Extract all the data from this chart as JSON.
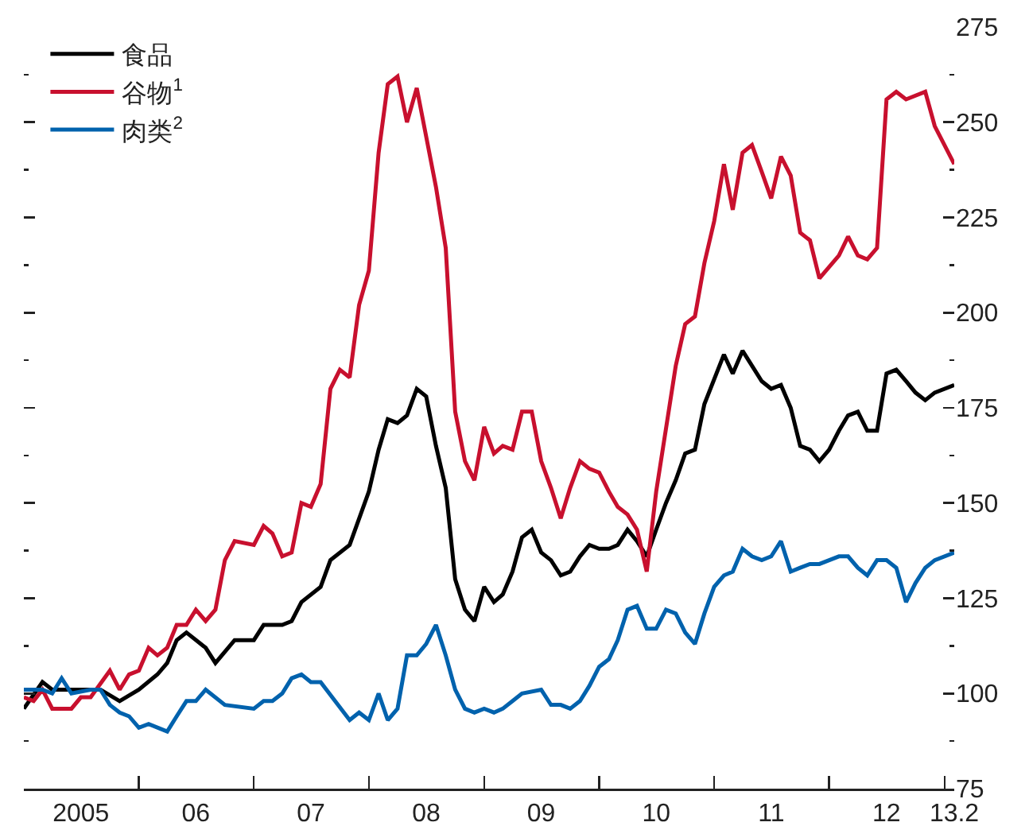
{
  "chart_data": {
    "type": "line",
    "xlim": [
      "2005-01",
      "2013-02"
    ],
    "xticks": [
      {
        "value": "2005-07",
        "label": "2005"
      },
      {
        "value": "2006-07",
        "label": "06"
      },
      {
        "value": "2007-07",
        "label": "07"
      },
      {
        "value": "2008-07",
        "label": "08"
      },
      {
        "value": "2009-07",
        "label": "09"
      },
      {
        "value": "2010-07",
        "label": "10"
      },
      {
        "value": "2011-07",
        "label": "11"
      },
      {
        "value": "2012-07",
        "label": "12"
      },
      {
        "value": "2013-02",
        "label": "13.2"
      },
      {
        "value": "2006-01",
        "label": null
      },
      {
        "value": "2007-01",
        "label": null
      },
      {
        "value": "2008-01",
        "label": null
      },
      {
        "value": "2009-01",
        "label": null
      },
      {
        "value": "2010-01",
        "label": null
      },
      {
        "value": "2011-01",
        "label": null
      },
      {
        "value": "2012-01",
        "label": null
      },
      {
        "value": "2013-01",
        "label": null
      }
    ],
    "ylim": [
      75,
      275
    ],
    "yticks": [
      75,
      100,
      125,
      150,
      175,
      200,
      225,
      250,
      275,
      {
        "value": 87.5,
        "label": null
      },
      {
        "value": 112.5,
        "label": null
      },
      {
        "value": 137.5,
        "label": null
      },
      {
        "value": 162.5,
        "label": null
      },
      {
        "value": 187.5,
        "label": null
      },
      {
        "value": 212.5,
        "label": null
      },
      {
        "value": 237.5,
        "label": null
      },
      {
        "value": 262.5,
        "label": null
      }
    ],
    "legend": "top left",
    "series": [
      {
        "name": "食品",
        "color": "#000000",
        "x": [
          "2005-01",
          "2005-03",
          "2005-04",
          "2005-07",
          "2005-09",
          "2005-11",
          "2006-01",
          "2006-03",
          "2006-04",
          "2006-05",
          "2006-06",
          "2006-08",
          "2006-09",
          "2006-11",
          "2007-01",
          "2007-02",
          "2007-04",
          "2007-05",
          "2007-06",
          "2007-08",
          "2007-09",
          "2007-11",
          "2008-01",
          "2008-02",
          "2008-03",
          "2008-04",
          "2008-05",
          "2008-06",
          "2008-07",
          "2008-08",
          "2008-09",
          "2008-10",
          "2008-11",
          "2008-12",
          "2009-01",
          "2009-02",
          "2009-03",
          "2009-04",
          "2009-05",
          "2009-06",
          "2009-07",
          "2009-08",
          "2009-09",
          "2009-10",
          "2009-11",
          "2009-12",
          "2010-01",
          "2010-02",
          "2010-03",
          "2010-04",
          "2010-05",
          "2010-06",
          "2010-07",
          "2010-08",
          "2010-09",
          "2010-10",
          "2010-11",
          "2010-12",
          "2011-02",
          "2011-03",
          "2011-04",
          "2011-06",
          "2011-07",
          "2011-08",
          "2011-09",
          "2011-10",
          "2011-11",
          "2011-12",
          "2012-01",
          "2012-02",
          "2012-03",
          "2012-04",
          "2012-05",
          "2012-06",
          "2012-07",
          "2012-08",
          "2012-09",
          "2012-10",
          "2012-11",
          "2012-12",
          "2013-02"
        ],
        "values": [
          96,
          103,
          101,
          101,
          101,
          98,
          101,
          105,
          108,
          114,
          116,
          112,
          108,
          114,
          114,
          118,
          118,
          119,
          124,
          128,
          135,
          139,
          153,
          164,
          172,
          171,
          173,
          180,
          178,
          165,
          154,
          130,
          122,
          119,
          128,
          124,
          126,
          132,
          141,
          143,
          137,
          135,
          131,
          132,
          136,
          139,
          138,
          138,
          139,
          143,
          140,
          136,
          143,
          150,
          156,
          163,
          164,
          176,
          189,
          184,
          190,
          182,
          180,
          181,
          175,
          165,
          164,
          161,
          164,
          169,
          173,
          174,
          169,
          169,
          184,
          185,
          182,
          179,
          177,
          179,
          181
        ]
      },
      {
        "name": "谷物$^{1}$",
        "color": "#c8102e",
        "x": [
          "2005-01",
          "2005-02",
          "2005-03",
          "2005-04",
          "2005-06",
          "2005-07",
          "2005-08",
          "2005-10",
          "2005-11",
          "2005-12",
          "2006-01",
          "2006-02",
          "2006-03",
          "2006-04",
          "2006-05",
          "2006-06",
          "2006-07",
          "2006-08",
          "2006-09",
          "2006-10",
          "2006-11",
          "2007-01",
          "2007-02",
          "2007-03",
          "2007-04",
          "2007-05",
          "2007-06",
          "2007-07",
          "2007-08",
          "2007-09",
          "2007-10",
          "2007-11",
          "2007-12",
          "2008-01",
          "2008-02",
          "2008-03",
          "2008-04",
          "2008-05",
          "2008-06",
          "2008-08",
          "2008-09",
          "2008-10",
          "2008-11",
          "2008-12",
          "2009-01",
          "2009-02",
          "2009-03",
          "2009-04",
          "2009-05",
          "2009-06",
          "2009-07",
          "2009-08",
          "2009-09",
          "2009-10",
          "2009-11",
          "2009-12",
          "2010-01",
          "2010-02",
          "2010-03",
          "2010-04",
          "2010-05",
          "2010-06",
          "2010-07",
          "2010-09",
          "2010-10",
          "2010-11",
          "2010-12",
          "2011-01",
          "2011-02",
          "2011-03",
          "2011-04",
          "2011-05",
          "2011-06",
          "2011-07",
          "2011-08",
          "2011-09",
          "2011-10",
          "2011-11",
          "2011-12",
          "2012-02",
          "2012-03",
          "2012-04",
          "2012-05",
          "2012-06",
          "2012-07",
          "2012-08",
          "2012-09",
          "2012-11",
          "2012-12",
          "2013-02"
        ],
        "values": [
          99,
          98,
          101,
          96,
          96,
          99,
          99,
          106,
          101,
          105,
          106,
          112,
          110,
          112,
          118,
          118,
          122,
          119,
          122,
          135,
          140,
          139,
          144,
          142,
          136,
          137,
          150,
          149,
          155,
          180,
          185,
          183,
          202,
          211,
          242,
          260,
          262,
          250,
          259,
          233,
          217,
          174,
          161,
          156,
          170,
          163,
          165,
          164,
          174,
          174,
          161,
          154,
          146,
          154,
          161,
          159,
          158,
          153,
          149,
          147,
          143,
          132,
          153,
          186,
          197,
          199,
          213,
          224,
          239,
          227,
          242,
          244,
          237,
          230,
          241,
          236,
          221,
          219,
          209,
          215,
          220,
          215,
          214,
          217,
          256,
          258,
          256,
          258,
          249,
          239
        ]
      },
      {
        "name": "肉类$^{2}$",
        "color": "#0062ad",
        "x": [
          "2005-01",
          "2005-02",
          "2005-03",
          "2005-04",
          "2005-05",
          "2005-06",
          "2005-08",
          "2005-09",
          "2005-10",
          "2005-11",
          "2005-12",
          "2006-01",
          "2006-02",
          "2006-04",
          "2006-05",
          "2006-06",
          "2006-07",
          "2006-08",
          "2006-10",
          "2007-01",
          "2007-02",
          "2007-03",
          "2007-04",
          "2007-05",
          "2007-06",
          "2007-07",
          "2007-08",
          "2007-11",
          "2007-12",
          "2008-01",
          "2008-02",
          "2008-03",
          "2008-04",
          "2008-05",
          "2008-06",
          "2008-07",
          "2008-08",
          "2008-09",
          "2008-10",
          "2008-11",
          "2008-12",
          "2009-01",
          "2009-02",
          "2009-03",
          "2009-04",
          "2009-05",
          "2009-07",
          "2009-08",
          "2009-09",
          "2009-10",
          "2009-11",
          "2009-12",
          "2010-01",
          "2010-02",
          "2010-03",
          "2010-04",
          "2010-05",
          "2010-06",
          "2010-07",
          "2010-08",
          "2010-09",
          "2010-10",
          "2010-11",
          "2010-12",
          "2011-01",
          "2011-02",
          "2011-03",
          "2011-04",
          "2011-05",
          "2011-06",
          "2011-07",
          "2011-08",
          "2011-09",
          "2011-10",
          "2011-11",
          "2011-12",
          "2012-01",
          "2012-02",
          "2012-03",
          "2012-04",
          "2012-05",
          "2012-06",
          "2012-07",
          "2012-08",
          "2012-09",
          "2012-10",
          "2012-11",
          "2012-12",
          "2013-02"
        ],
        "values": [
          101,
          101,
          101,
          100,
          104,
          100,
          101,
          101,
          97,
          95,
          94,
          91,
          92,
          90,
          94,
          98,
          98,
          101,
          97,
          96,
          98,
          98,
          100,
          104,
          105,
          103,
          103,
          93,
          95,
          93,
          100,
          93,
          96,
          110,
          110,
          113,
          118,
          110,
          101,
          96,
          95,
          96,
          95,
          96,
          98,
          100,
          101,
          97,
          97,
          96,
          98,
          102,
          107,
          109,
          114,
          122,
          123,
          117,
          117,
          122,
          121,
          116,
          113,
          121,
          128,
          131,
          132,
          138,
          136,
          135,
          136,
          140,
          132,
          133,
          134,
          134,
          135,
          136,
          136,
          133,
          131,
          135,
          135,
          133,
          124,
          129,
          133,
          135,
          137
        ]
      }
    ]
  }
}
